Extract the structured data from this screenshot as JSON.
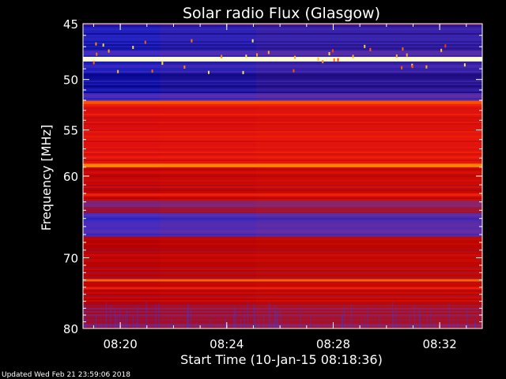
{
  "chart_data": {
    "type": "heatmap",
    "title": "Solar radio Flux (Glasgow)",
    "xlabel": "Start Time (10-Jan-15 08:18:36)",
    "ylabel": "Frequency [MHz]",
    "x_unit": "minutes",
    "x_range": [
      "08:18:36",
      "08:33:36"
    ],
    "x_ticks": [
      "08:20",
      "08:24",
      "08:28",
      "08:32"
    ],
    "x_tick_minutes_from_start": [
      1.4,
      5.4,
      9.4,
      13.4
    ],
    "x_total_minutes": 15.0,
    "y_range": [
      45,
      80
    ],
    "y_scale": "log",
    "y_ticks": [
      45,
      50,
      55,
      60,
      70,
      80
    ],
    "colormap": [
      "#000080",
      "#2a2ad0",
      "#7030a0",
      "#b00000",
      "#e01010",
      "#ff3b00",
      "#ff8a00",
      "#ffe23a",
      "#ffffe0"
    ],
    "bands": [
      {
        "from": 45.0,
        "to": 47.2,
        "level": 0.08
      },
      {
        "from": 47.2,
        "to": 47.9,
        "level": 0.14
      },
      {
        "from": 47.9,
        "to": 48.3,
        "level": 0.98
      },
      {
        "from": 48.3,
        "to": 49.4,
        "level": 0.1
      },
      {
        "from": 49.4,
        "to": 51.3,
        "level": 0.05
      },
      {
        "from": 51.3,
        "to": 52.1,
        "level": 0.16
      },
      {
        "from": 52.1,
        "to": 52.4,
        "level": 0.62
      },
      {
        "from": 52.4,
        "to": 58.6,
        "level": 0.5
      },
      {
        "from": 58.6,
        "to": 59.0,
        "level": 0.72
      },
      {
        "from": 59.0,
        "to": 62.8,
        "level": 0.42
      },
      {
        "from": 62.8,
        "to": 64.3,
        "level": 0.3
      },
      {
        "from": 64.3,
        "to": 67.2,
        "level": 0.17
      },
      {
        "from": 67.2,
        "to": 76.5,
        "level": 0.4
      },
      {
        "from": 76.5,
        "to": 80.0,
        "level": 0.32
      }
    ],
    "lines": [
      {
        "freq": 48.1,
        "level": 0.99
      },
      {
        "freq": 52.2,
        "level": 0.66
      },
      {
        "freq": 58.8,
        "level": 0.74
      },
      {
        "freq": 62.2,
        "level": 0.55
      },
      {
        "freq": 73.1,
        "level": 0.68
      },
      {
        "freq": 74.2,
        "level": 0.55
      }
    ],
    "time_steps_minutes": [
      2.9,
      6.5
    ]
  },
  "footer": {
    "updated": "Updated Wed Feb 21 23:59:06 2018"
  }
}
